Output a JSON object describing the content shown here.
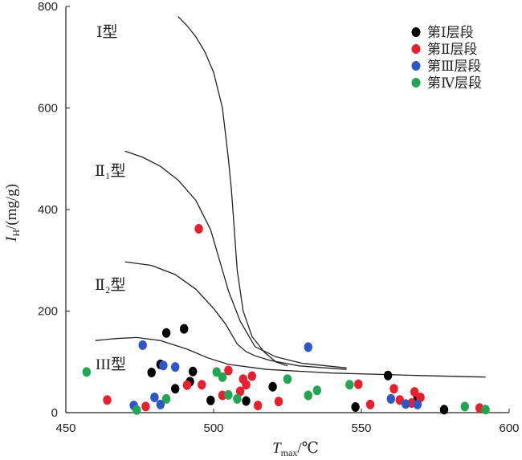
{
  "chart_data": {
    "type": "scatter",
    "xlabel": {
      "main": "T",
      "sub": "max",
      "unit": "/℃"
    },
    "ylabel": {
      "main": "I",
      "sub": "H",
      "unit": "/(mg/g)"
    },
    "xlim": [
      450,
      600
    ],
    "ylim": [
      0,
      800
    ],
    "x_ticks": [
      450,
      500,
      550,
      600
    ],
    "y_ticks": [
      0,
      200,
      400,
      600,
      800
    ],
    "grid": false,
    "legend_position": "top-right",
    "series": [
      {
        "name": "第Ⅰ层段",
        "color": "#000000",
        "points": [
          [
            479,
            79
          ],
          [
            482,
            95
          ],
          [
            484,
            157
          ],
          [
            487,
            47
          ],
          [
            490,
            165
          ],
          [
            492,
            61
          ],
          [
            493,
            81
          ],
          [
            499,
            24
          ],
          [
            511,
            23
          ],
          [
            520,
            51
          ],
          [
            548,
            11
          ],
          [
            559,
            73
          ],
          [
            569,
            30
          ],
          [
            578,
            6
          ]
        ]
      },
      {
        "name": "第Ⅱ层段",
        "color": "#e8202e",
        "points": [
          [
            464,
            25
          ],
          [
            477,
            12
          ],
          [
            491,
            54
          ],
          [
            495,
            362
          ],
          [
            496,
            55
          ],
          [
            503,
            34
          ],
          [
            505,
            83
          ],
          [
            509,
            42
          ],
          [
            510,
            66
          ],
          [
            511,
            55
          ],
          [
            513,
            72
          ],
          [
            515,
            14
          ],
          [
            522,
            22
          ],
          [
            549,
            56
          ],
          [
            553,
            16
          ],
          [
            561,
            47
          ],
          [
            563,
            25
          ],
          [
            567,
            19
          ],
          [
            568,
            41
          ],
          [
            570,
            30
          ],
          [
            590,
            9
          ]
        ]
      },
      {
        "name": "第Ⅲ层段",
        "color": "#2d56c8",
        "points": [
          [
            473,
            14
          ],
          [
            476,
            133
          ],
          [
            480,
            30
          ],
          [
            482,
            16
          ],
          [
            483,
            93
          ],
          [
            487,
            90
          ],
          [
            532,
            129
          ],
          [
            560,
            27
          ],
          [
            565,
            17
          ],
          [
            569,
            16
          ]
        ]
      },
      {
        "name": "第Ⅳ层段",
        "color": "#22a653",
        "points": [
          [
            457,
            80
          ],
          [
            474,
            5
          ],
          [
            484,
            27
          ],
          [
            501,
            80
          ],
          [
            503,
            70
          ],
          [
            505,
            35
          ],
          [
            508,
            27
          ],
          [
            525,
            66
          ],
          [
            532,
            34
          ],
          [
            535,
            44
          ],
          [
            546,
            55
          ],
          [
            585,
            12
          ],
          [
            592,
            6
          ]
        ]
      }
    ],
    "curves": [
      {
        "label": "Ⅰ型",
        "points": [
          [
            488,
            780
          ],
          [
            491,
            762
          ],
          [
            494,
            740
          ],
          [
            497,
            711
          ],
          [
            500,
            670
          ],
          [
            503,
            600
          ],
          [
            505,
            500
          ],
          [
            506,
            440
          ],
          [
            507,
            360
          ],
          [
            508,
            280
          ],
          [
            510,
            200
          ],
          [
            513,
            150
          ],
          [
            517,
            120
          ],
          [
            521,
            100
          ],
          [
            525,
            92
          ]
        ]
      },
      {
        "label": "Ⅱ₁型",
        "points": [
          [
            470,
            515
          ],
          [
            476,
            503
          ],
          [
            482,
            485
          ],
          [
            488,
            458
          ],
          [
            494,
            418
          ],
          [
            499,
            360
          ],
          [
            502,
            300
          ],
          [
            505,
            240
          ],
          [
            509,
            180
          ],
          [
            514,
            130
          ],
          [
            521,
            110
          ],
          [
            530,
            97
          ],
          [
            545,
            88
          ]
        ]
      },
      {
        "label": "Ⅱ₂型",
        "points": [
          [
            470,
            297
          ],
          [
            479,
            290
          ],
          [
            487,
            272
          ],
          [
            494,
            243
          ],
          [
            500,
            205
          ],
          [
            504,
            175
          ],
          [
            508,
            135
          ],
          [
            511,
            120
          ],
          [
            514,
            112
          ],
          [
            519,
            103
          ],
          [
            529,
            92
          ],
          [
            545,
            85
          ]
        ]
      },
      {
        "label": "III型",
        "points": [
          [
            460,
            142
          ],
          [
            467,
            146
          ],
          [
            474,
            148
          ],
          [
            482,
            142
          ],
          [
            491,
            125
          ],
          [
            498,
            108
          ],
          [
            505,
            95
          ],
          [
            518,
            85
          ],
          [
            540,
            78
          ],
          [
            570,
            73
          ],
          [
            592,
            70
          ]
        ]
      }
    ]
  }
}
